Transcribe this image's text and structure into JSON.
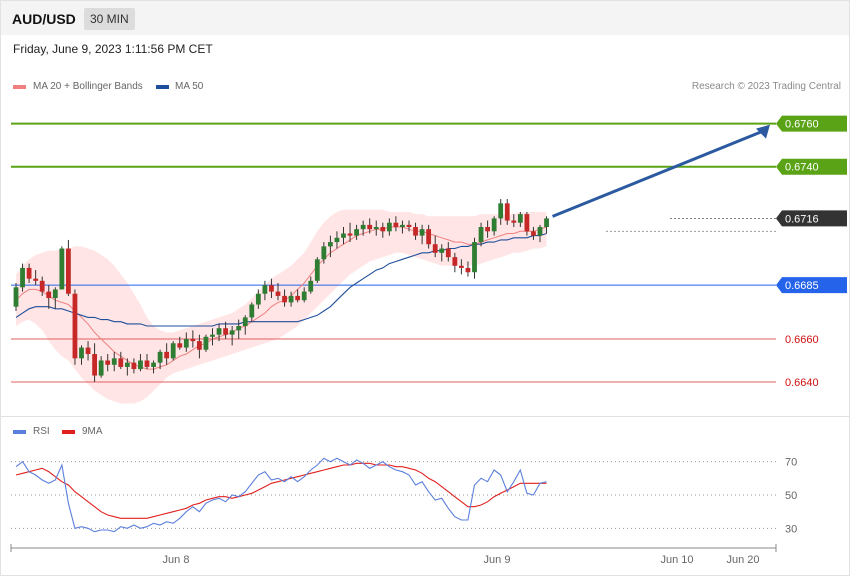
{
  "header": {
    "symbol": "AUD/USD",
    "timeframe": "30 MIN"
  },
  "date_text": "Friday, June 9, 2023 1:11:56 PM CET",
  "credit": "Research © 2023 Trading Central",
  "legend": [
    {
      "label": "MA 20 + Bollinger Bands",
      "color": "#f08080"
    },
    {
      "label": "MA 50",
      "color": "#1f4e9c"
    }
  ],
  "rsi_legend": [
    {
      "label": "RSI",
      "color": "#5b7fdc"
    },
    {
      "label": "9MA",
      "color": "#e0201e"
    }
  ],
  "colors": {
    "up": "#2e7d32",
    "down": "#c62828",
    "resistance": "#5aa316",
    "pivot": "#2563eb",
    "support": "#e06060",
    "last": "#333333",
    "band": "#ffdcdc",
    "arrow": "#2c5aa0"
  },
  "chart_data": [
    {
      "type": "candlestick",
      "title": "AUD/USD 30 MIN",
      "ylim": [
        0.6627,
        0.6771
      ],
      "x_tick_labels": [
        "Jun 8",
        "Jun 9",
        "Jun 10",
        "Jun 20"
      ],
      "last_price": "0.6716",
      "levels": [
        {
          "value": "0.6760",
          "kind": "resistance"
        },
        {
          "value": "0.6740",
          "kind": "resistance"
        },
        {
          "value": "0.6716",
          "kind": "last"
        },
        {
          "value": "0.6685",
          "kind": "pivot"
        },
        {
          "value": "0.6660",
          "kind": "support"
        },
        {
          "value": "0.6640",
          "kind": "support"
        }
      ],
      "candles_ohlc": [
        [
          0.6675,
          0.6686,
          0.6673,
          0.6684
        ],
        [
          0.6684,
          0.6695,
          0.6682,
          0.6693
        ],
        [
          0.6693,
          0.6695,
          0.6686,
          0.6688
        ],
        [
          0.6688,
          0.6692,
          0.6685,
          0.6687
        ],
        [
          0.6687,
          0.6689,
          0.668,
          0.6682
        ],
        [
          0.6682,
          0.6685,
          0.6674,
          0.6679
        ],
        [
          0.6679,
          0.6684,
          0.6674,
          0.6683
        ],
        [
          0.6683,
          0.6703,
          0.6683,
          0.6702
        ],
        [
          0.6702,
          0.6706,
          0.668,
          0.6681
        ],
        [
          0.6681,
          0.6683,
          0.6648,
          0.6651
        ],
        [
          0.6651,
          0.6657,
          0.6648,
          0.6656
        ],
        [
          0.6656,
          0.6659,
          0.665,
          0.6653
        ],
        [
          0.6653,
          0.6658,
          0.664,
          0.6643
        ],
        [
          0.6643,
          0.6652,
          0.6642,
          0.665
        ],
        [
          0.665,
          0.6653,
          0.6645,
          0.6648
        ],
        [
          0.6648,
          0.6654,
          0.6645,
          0.6651
        ],
        [
          0.6651,
          0.6654,
          0.6646,
          0.6647
        ],
        [
          0.6647,
          0.6651,
          0.6643,
          0.6649
        ],
        [
          0.6649,
          0.6651,
          0.6644,
          0.6646
        ],
        [
          0.6646,
          0.6653,
          0.6645,
          0.665
        ],
        [
          0.665,
          0.6653,
          0.6646,
          0.6647
        ],
        [
          0.6647,
          0.665,
          0.6644,
          0.6649
        ],
        [
          0.6649,
          0.6655,
          0.6646,
          0.6654
        ],
        [
          0.6654,
          0.6658,
          0.6648,
          0.6651
        ],
        [
          0.6651,
          0.6659,
          0.665,
          0.6658
        ],
        [
          0.6658,
          0.6661,
          0.6655,
          0.6656
        ],
        [
          0.6656,
          0.6663,
          0.6654,
          0.666
        ],
        [
          0.666,
          0.6664,
          0.6656,
          0.6659
        ],
        [
          0.6659,
          0.6662,
          0.6651,
          0.6655
        ],
        [
          0.6655,
          0.6662,
          0.6654,
          0.6661
        ],
        [
          0.6661,
          0.6665,
          0.6657,
          0.6662
        ],
        [
          0.6662,
          0.6667,
          0.6659,
          0.6665
        ],
        [
          0.6665,
          0.6668,
          0.666,
          0.6662
        ],
        [
          0.6662,
          0.6666,
          0.6657,
          0.6664
        ],
        [
          0.6664,
          0.6669,
          0.666,
          0.6666
        ],
        [
          0.6666,
          0.6671,
          0.6662,
          0.667
        ],
        [
          0.667,
          0.6677,
          0.6668,
          0.6676
        ],
        [
          0.6676,
          0.6683,
          0.6674,
          0.6681
        ],
        [
          0.6681,
          0.6687,
          0.6678,
          0.6685
        ],
        [
          0.6685,
          0.6688,
          0.6679,
          0.6682
        ],
        [
          0.6682,
          0.6686,
          0.6678,
          0.668
        ],
        [
          0.668,
          0.6683,
          0.6675,
          0.6677
        ],
        [
          0.6677,
          0.6682,
          0.6675,
          0.668
        ],
        [
          0.668,
          0.6683,
          0.6677,
          0.6678
        ],
        [
          0.6678,
          0.6684,
          0.6677,
          0.6682
        ],
        [
          0.6682,
          0.6689,
          0.6681,
          0.6687
        ],
        [
          0.6687,
          0.6698,
          0.6686,
          0.6697
        ],
        [
          0.6697,
          0.6705,
          0.6695,
          0.6703
        ],
        [
          0.6703,
          0.6708,
          0.6698,
          0.6705
        ],
        [
          0.6705,
          0.671,
          0.6702,
          0.6707
        ],
        [
          0.6707,
          0.6712,
          0.6704,
          0.6709
        ],
        [
          0.6709,
          0.6714,
          0.6705,
          0.6708
        ],
        [
          0.6708,
          0.6713,
          0.6706,
          0.6711
        ],
        [
          0.6711,
          0.6715,
          0.6708,
          0.6713
        ],
        [
          0.6713,
          0.6716,
          0.6709,
          0.6711
        ],
        [
          0.6711,
          0.6715,
          0.6708,
          0.6712
        ],
        [
          0.6712,
          0.6714,
          0.6707,
          0.671
        ],
        [
          0.671,
          0.6716,
          0.6708,
          0.6714
        ],
        [
          0.6714,
          0.6717,
          0.671,
          0.6712
        ],
        [
          0.6712,
          0.6715,
          0.6709,
          0.6713
        ],
        [
          0.6713,
          0.6715,
          0.671,
          0.6712
        ],
        [
          0.6712,
          0.6714,
          0.6706,
          0.6708
        ],
        [
          0.6708,
          0.6713,
          0.6704,
          0.6711
        ],
        [
          0.6711,
          0.6713,
          0.6702,
          0.6704
        ],
        [
          0.6704,
          0.6708,
          0.6698,
          0.67
        ],
        [
          0.67,
          0.6704,
          0.6696,
          0.6702
        ],
        [
          0.6702,
          0.6705,
          0.6696,
          0.6698
        ],
        [
          0.6698,
          0.67,
          0.6691,
          0.6694
        ],
        [
          0.6694,
          0.6697,
          0.669,
          0.6693
        ],
        [
          0.6693,
          0.6696,
          0.6689,
          0.6691
        ],
        [
          0.6691,
          0.6707,
          0.6688,
          0.6705
        ],
        [
          0.6705,
          0.6714,
          0.6703,
          0.6712
        ],
        [
          0.6712,
          0.6715,
          0.6707,
          0.671
        ],
        [
          0.671,
          0.6717,
          0.6708,
          0.6716
        ],
        [
          0.6716,
          0.6725,
          0.6713,
          0.6723
        ],
        [
          0.6723,
          0.6725,
          0.6713,
          0.6715
        ],
        [
          0.6715,
          0.6718,
          0.6712,
          0.6714
        ],
        [
          0.6714,
          0.6719,
          0.6712,
          0.6718
        ],
        [
          0.6718,
          0.6719,
          0.6708,
          0.671
        ],
        [
          0.671,
          0.6712,
          0.6706,
          0.6708
        ],
        [
          0.6708,
          0.6713,
          0.6705,
          0.6712
        ],
        [
          0.6712,
          0.6717,
          0.6709,
          0.6716
        ]
      ],
      "ma20": [
        0.6678,
        0.6681,
        0.6683,
        0.6683,
        0.6682,
        0.668,
        0.6678,
        0.6677,
        0.6676,
        0.6673,
        0.667,
        0.6667,
        0.6663,
        0.666,
        0.6657,
        0.6654,
        0.6652,
        0.665,
        0.6648,
        0.6647,
        0.6646,
        0.6646,
        0.6647,
        0.6648,
        0.665,
        0.6652,
        0.6653,
        0.6655,
        0.6657,
        0.6658,
        0.666,
        0.6661,
        0.6662,
        0.6663,
        0.6665,
        0.6666,
        0.6668,
        0.667,
        0.6672,
        0.6675,
        0.6677,
        0.6678,
        0.668,
        0.6683,
        0.6686,
        0.669,
        0.6694,
        0.6697,
        0.67,
        0.6702,
        0.6704,
        0.6706,
        0.6708,
        0.6709,
        0.671,
        0.6711,
        0.6711,
        0.6712,
        0.6712,
        0.6712,
        0.6711,
        0.671,
        0.671,
        0.6709,
        0.6708,
        0.6707,
        0.6706,
        0.6705,
        0.6705,
        0.6704,
        0.6704,
        0.6705,
        0.6706,
        0.6707,
        0.6708,
        0.6709,
        0.6709,
        0.671,
        0.671,
        0.671,
        0.6711,
        0.6712
      ],
      "ma50": [
        0.667,
        0.6672,
        0.6674,
        0.6675,
        0.6675,
        0.6675,
        0.6674,
        0.6674,
        0.6673,
        0.6672,
        0.6671,
        0.667,
        0.667,
        0.6669,
        0.6669,
        0.6668,
        0.6668,
        0.6667,
        0.6667,
        0.6667,
        0.6666,
        0.6666,
        0.6666,
        0.6666,
        0.6666,
        0.6666,
        0.6666,
        0.6666,
        0.6666,
        0.6666,
        0.6666,
        0.6667,
        0.6667,
        0.6667,
        0.6667,
        0.6668,
        0.6668,
        0.6668,
        0.6668,
        0.6668,
        0.6668,
        0.6668,
        0.6668,
        0.6668,
        0.6669,
        0.667,
        0.6671,
        0.6673,
        0.6675,
        0.6678,
        0.6681,
        0.6684,
        0.6686,
        0.6688,
        0.669,
        0.6692,
        0.6693,
        0.6695,
        0.6696,
        0.6697,
        0.6698,
        0.6699,
        0.67,
        0.67,
        0.6701,
        0.6701,
        0.6702,
        0.6702,
        0.6703,
        0.6703,
        0.6704,
        0.6704,
        0.6705,
        0.6705,
        0.6706,
        0.6706,
        0.6707,
        0.6707,
        0.6707,
        0.6708,
        0.6708,
        0.6709
      ],
      "bb_upper": [
        0.669,
        0.6694,
        0.6697,
        0.6699,
        0.67,
        0.6701,
        0.6701,
        0.6702,
        0.6702,
        0.6703,
        0.6703,
        0.6702,
        0.6701,
        0.6699,
        0.6697,
        0.6694,
        0.669,
        0.6686,
        0.6681,
        0.6676,
        0.667,
        0.6666,
        0.6664,
        0.6663,
        0.6663,
        0.6664,
        0.6665,
        0.6666,
        0.6667,
        0.6668,
        0.6669,
        0.667,
        0.6671,
        0.6672,
        0.6674,
        0.6676,
        0.6679,
        0.6682,
        0.6685,
        0.6688,
        0.669,
        0.6692,
        0.6694,
        0.6697,
        0.67,
        0.6705,
        0.671,
        0.6714,
        0.6717,
        0.6719,
        0.672,
        0.672,
        0.672,
        0.672,
        0.672,
        0.672,
        0.672,
        0.6719,
        0.6719,
        0.6719,
        0.6719,
        0.6718,
        0.6718,
        0.6717,
        0.6717,
        0.6717,
        0.6717,
        0.6717,
        0.6717,
        0.6717,
        0.6717,
        0.6718,
        0.6718,
        0.6718,
        0.6718,
        0.6718,
        0.6718,
        0.6719,
        0.6719,
        0.6719,
        0.6719,
        0.6719
      ],
      "bb_lower": [
        0.6666,
        0.6668,
        0.6669,
        0.6667,
        0.6664,
        0.6659,
        0.6655,
        0.6652,
        0.665,
        0.6646,
        0.6642,
        0.6639,
        0.6636,
        0.6634,
        0.6632,
        0.6631,
        0.663,
        0.663,
        0.663,
        0.6631,
        0.6633,
        0.6636,
        0.6639,
        0.6642,
        0.6644,
        0.6645,
        0.6646,
        0.6647,
        0.6648,
        0.6649,
        0.665,
        0.6651,
        0.6652,
        0.6653,
        0.6654,
        0.6655,
        0.6656,
        0.6657,
        0.6658,
        0.6659,
        0.666,
        0.6662,
        0.6664,
        0.6666,
        0.6669,
        0.6672,
        0.6675,
        0.6678,
        0.6681,
        0.6684,
        0.6687,
        0.669,
        0.6692,
        0.6694,
        0.6696,
        0.6697,
        0.6698,
        0.6699,
        0.67,
        0.67,
        0.6699,
        0.6698,
        0.6697,
        0.6696,
        0.6695,
        0.6694,
        0.6694,
        0.6694,
        0.6694,
        0.6694,
        0.6694,
        0.6695,
        0.6696,
        0.6697,
        0.6698,
        0.6699,
        0.67,
        0.67,
        0.6701,
        0.6702,
        0.6702,
        0.6703
      ]
    },
    {
      "type": "line",
      "title": "RSI",
      "ylim": [
        20,
        80
      ],
      "y_ticks": [
        "70",
        "50",
        "30"
      ],
      "series": [
        {
          "name": "RSI",
          "values": [
            67,
            70,
            64,
            62,
            59,
            57,
            59,
            68,
            45,
            30,
            31,
            30,
            28,
            29,
            29,
            28,
            31,
            30,
            32,
            30,
            31,
            33,
            32,
            34,
            33,
            36,
            40,
            43,
            40,
            45,
            47,
            48,
            46,
            50,
            49,
            52,
            57,
            62,
            64,
            59,
            60,
            58,
            61,
            58,
            61,
            65,
            68,
            72,
            70,
            72,
            70,
            68,
            71,
            69,
            66,
            68,
            70,
            67,
            65,
            64,
            62,
            56,
            58,
            52,
            47,
            48,
            42,
            37,
            35,
            35,
            56,
            60,
            58,
            65,
            62,
            52,
            58,
            65,
            51,
            50,
            57,
            58
          ]
        },
        {
          "name": "9MA",
          "values": [
            62,
            63,
            64,
            65,
            66,
            64,
            61,
            58,
            56,
            52,
            49,
            46,
            43,
            40,
            38,
            37,
            36,
            36,
            36,
            36,
            36,
            37,
            38,
            39,
            40,
            41,
            42,
            44,
            45,
            47,
            48,
            49,
            49,
            48,
            49,
            50,
            51,
            53,
            55,
            57,
            58,
            59,
            60,
            61,
            62,
            63,
            64,
            65,
            66,
            67,
            68,
            68,
            69,
            69,
            69,
            68,
            68,
            68,
            67,
            67,
            66,
            65,
            63,
            60,
            58,
            55,
            52,
            49,
            46,
            43,
            43,
            44,
            46,
            49,
            51,
            53,
            55,
            57,
            57,
            57,
            57,
            57
          ]
        }
      ]
    }
  ]
}
